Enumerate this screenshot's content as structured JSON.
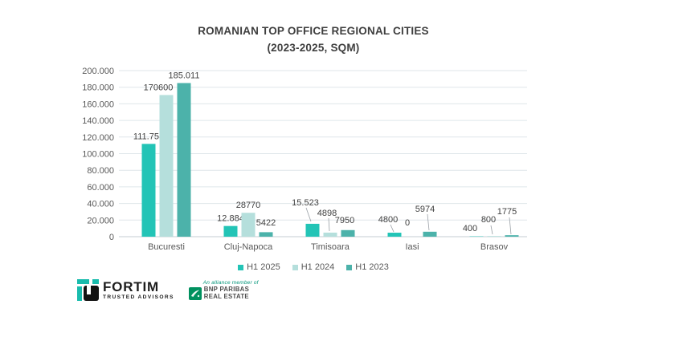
{
  "title": {
    "line1": "ROMANIAN TOP OFFICE REGIONAL CITIES",
    "line2": "(2023-2025, SQM)"
  },
  "chart_data": {
    "type": "bar",
    "categories": [
      "Bucuresti",
      "Cluj-Napoca",
      "Timisoara",
      "Iasi",
      "Brasov"
    ],
    "series": [
      {
        "name": "H1 2025",
        "color": "#23c4b6",
        "values": [
          111753,
          12884,
          15523,
          4800,
          400
        ],
        "labels": [
          "111.753",
          "12.884",
          "15.523",
          "4800",
          "400"
        ]
      },
      {
        "name": "H1 2024",
        "color": "#b5dfdc",
        "values": [
          170600,
          28770,
          4898,
          0,
          800
        ],
        "labels": [
          "170600",
          "28770",
          "4898",
          "0",
          "800"
        ]
      },
      {
        "name": "H1 2023",
        "color": "#4cb2aa",
        "values": [
          185011,
          5422,
          7950,
          5974,
          1775
        ],
        "labels": [
          "185.011",
          "5422",
          "7950",
          "5974",
          "1775"
        ]
      }
    ],
    "ylim": [
      0,
      200000
    ],
    "ytick_step": 20000,
    "ytick_labels": [
      "0",
      "20.000",
      "40.000",
      "60.000",
      "80.000",
      "100.000",
      "120.000",
      "140.000",
      "160.000",
      "180.000",
      "200.000"
    ],
    "grid": true,
    "legend_position": "bottom"
  },
  "footer": {
    "fortim": {
      "name": "FORTIM",
      "tagline": "TRUSTED ADVISORS"
    },
    "bnp": {
      "alliance": "An alliance member of",
      "line1": "BNP PARIBAS",
      "line2": "REAL ESTATE"
    }
  },
  "colors": {
    "grid_line": "#dfe6ea",
    "axis_line": "#c6cdd3",
    "tick_text": "#595959",
    "data_label_text": "#3f3f3f",
    "leader_line": "#9aa0a6",
    "title_text": "#3f3f3f"
  }
}
